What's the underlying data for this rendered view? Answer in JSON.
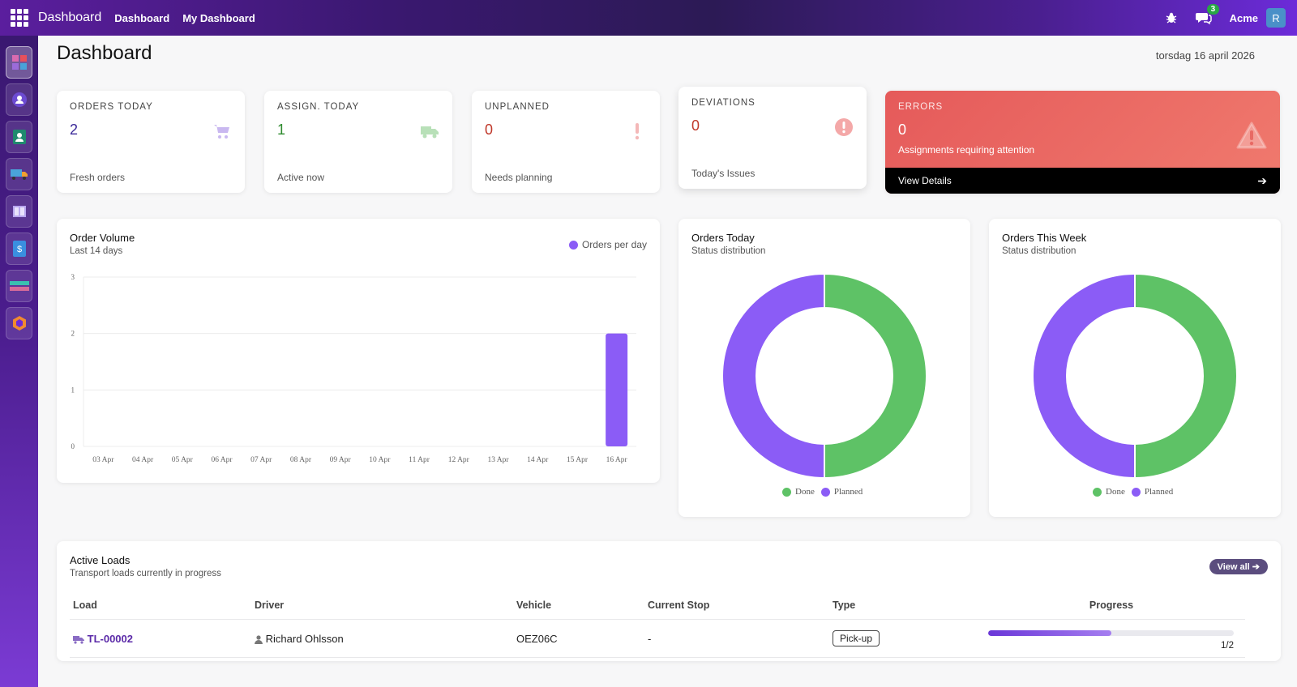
{
  "topbar": {
    "brand": "Dashboard",
    "menu": [
      "Dashboard",
      "My Dashboard"
    ],
    "chat_count": "3",
    "company": "Acme",
    "avatar_initial": "R"
  },
  "appbar": {
    "icons": [
      "dashboard-app-icon",
      "contacts-app-icon",
      "employees-app-icon",
      "fleet-app-icon",
      "documents-app-icon",
      "sign-app-icon",
      "accounting-app-icon",
      "studio-app-icon"
    ]
  },
  "page": {
    "title": "Dashboard",
    "date": "torsdag 16 april 2026"
  },
  "kpis": [
    {
      "label": "ORDERS TODAY",
      "value": "2",
      "sub": "Fresh orders",
      "icon": "cart-icon",
      "color": "#3b2a99"
    },
    {
      "label": "ASSIGN. TODAY",
      "value": "1",
      "sub": "Active now",
      "icon": "truck-icon",
      "color": "#2e8b2e"
    },
    {
      "label": "UNPLANNED",
      "value": "0",
      "sub": "Needs planning",
      "icon": "exclamation-icon",
      "color": "#c0392b"
    },
    {
      "label": "DEVIATIONS",
      "value": "0",
      "sub": "Today's Issues",
      "icon": "exclamation-circle-icon",
      "color": "#c0392b"
    }
  ],
  "errors": {
    "label": "ERRORS",
    "value": "0",
    "desc": "Assignments requiring attention",
    "link": "View Details"
  },
  "order_volume": {
    "title": "Order Volume",
    "subtitle": "Last 14 days",
    "legend": "Orders per day",
    "bar_color": "#8b5cf6"
  },
  "orders_today": {
    "title": "Orders Today",
    "subtitle": "Status distribution",
    "legend": [
      "Done",
      "Planned"
    ]
  },
  "orders_week": {
    "title": "Orders This Week",
    "subtitle": "Status distribution",
    "legend": [
      "Done",
      "Planned"
    ]
  },
  "chart_data": [
    {
      "type": "bar",
      "title": "Order Volume",
      "subtitle": "Last 14 days",
      "categories": [
        "03 Apr",
        "04 Apr",
        "05 Apr",
        "06 Apr",
        "07 Apr",
        "08 Apr",
        "09 Apr",
        "10 Apr",
        "11 Apr",
        "12 Apr",
        "13 Apr",
        "14 Apr",
        "15 Apr",
        "16 Apr"
      ],
      "series": [
        {
          "name": "Orders per day",
          "values": [
            0,
            0,
            0,
            0,
            0,
            0,
            0,
            0,
            0,
            0,
            0,
            0,
            0,
            2
          ]
        }
      ],
      "yticks": [
        0,
        1,
        2,
        3
      ],
      "ylim": [
        0,
        3
      ],
      "grid": true,
      "legend_position": "top-right"
    },
    {
      "type": "pie",
      "title": "Orders Today",
      "subtitle": "Status distribution",
      "labels": [
        "Done",
        "Planned"
      ],
      "values": [
        1,
        1
      ],
      "colors": [
        "#5ec266",
        "#8b5cf6"
      ],
      "legend_position": "bottom"
    },
    {
      "type": "pie",
      "title": "Orders This Week",
      "subtitle": "Status distribution",
      "labels": [
        "Done",
        "Planned"
      ],
      "values": [
        1,
        1
      ],
      "colors": [
        "#5ec266",
        "#8b5cf6"
      ],
      "legend_position": "bottom"
    }
  ],
  "active_loads": {
    "title": "Active Loads",
    "subtitle": "Transport loads currently in progress",
    "view_all": "View all",
    "columns": [
      "Load",
      "Driver",
      "Vehicle",
      "Current Stop",
      "Type",
      "Progress"
    ],
    "rows": [
      {
        "load": "TL-00002",
        "driver": "Richard Ohlsson",
        "vehicle": "OEZ06C",
        "stop": "-",
        "type": "Pick-up",
        "progress_text": "1/2",
        "progress": 0.5
      }
    ]
  }
}
